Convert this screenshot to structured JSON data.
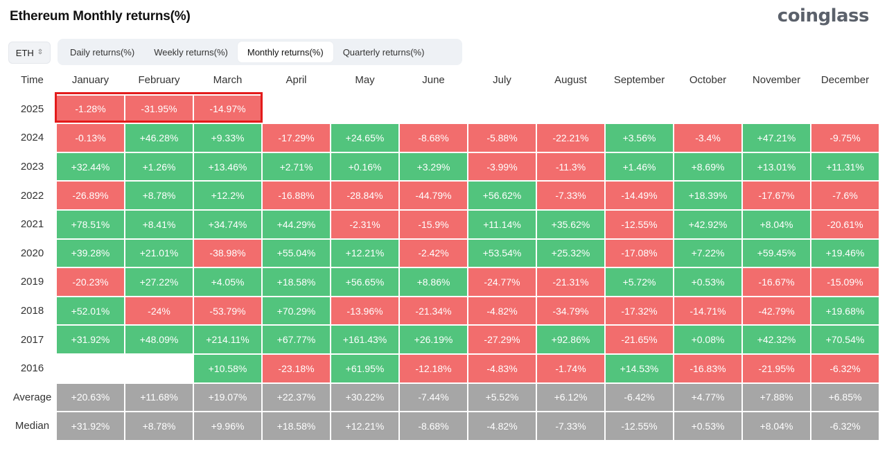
{
  "page": {
    "title": "Ethereum Monthly returns(%)",
    "brand": "coinglass"
  },
  "colors": {
    "positive": "#52c47d",
    "negative": "#f26d6d",
    "summary": "#a6a6a6",
    "highlight": "#e31b1b"
  },
  "selector": {
    "value": "ETH",
    "icon": "chevron-updown-icon"
  },
  "tabs": [
    {
      "label": "Daily returns(%)",
      "active": false
    },
    {
      "label": "Weekly returns(%)",
      "active": false
    },
    {
      "label": "Monthly returns(%)",
      "active": true
    },
    {
      "label": "Quarterly returns(%)",
      "active": false
    }
  ],
  "table": {
    "time_header": "Time",
    "months": [
      "January",
      "February",
      "March",
      "April",
      "May",
      "June",
      "July",
      "August",
      "September",
      "October",
      "November",
      "December"
    ],
    "rows": [
      {
        "label": "2025",
        "values": [
          "-1.28%",
          "-31.95%",
          "-14.97%",
          "",
          "",
          "",
          "",
          "",
          "",
          "",
          "",
          ""
        ]
      },
      {
        "label": "2024",
        "values": [
          "-0.13%",
          "+46.28%",
          "+9.33%",
          "-17.29%",
          "+24.65%",
          "-8.68%",
          "-5.88%",
          "-22.21%",
          "+3.56%",
          "-3.4%",
          "+47.21%",
          "-9.75%"
        ]
      },
      {
        "label": "2023",
        "values": [
          "+32.44%",
          "+1.26%",
          "+13.46%",
          "+2.71%",
          "+0.16%",
          "+3.29%",
          "-3.99%",
          "-11.3%",
          "+1.46%",
          "+8.69%",
          "+13.01%",
          "+11.31%"
        ]
      },
      {
        "label": "2022",
        "values": [
          "-26.89%",
          "+8.78%",
          "+12.2%",
          "-16.88%",
          "-28.84%",
          "-44.79%",
          "+56.62%",
          "-7.33%",
          "-14.49%",
          "+18.39%",
          "-17.67%",
          "-7.6%"
        ]
      },
      {
        "label": "2021",
        "values": [
          "+78.51%",
          "+8.41%",
          "+34.74%",
          "+44.29%",
          "-2.31%",
          "-15.9%",
          "+11.14%",
          "+35.62%",
          "-12.55%",
          "+42.92%",
          "+8.04%",
          "-20.61%"
        ]
      },
      {
        "label": "2020",
        "values": [
          "+39.28%",
          "+21.01%",
          "-38.98%",
          "+55.04%",
          "+12.21%",
          "-2.42%",
          "+53.54%",
          "+25.32%",
          "-17.08%",
          "+7.22%",
          "+59.45%",
          "+19.46%"
        ]
      },
      {
        "label": "2019",
        "values": [
          "-20.23%",
          "+27.22%",
          "+4.05%",
          "+18.58%",
          "+56.65%",
          "+8.86%",
          "-24.77%",
          "-21.31%",
          "+5.72%",
          "+0.53%",
          "-16.67%",
          "-15.09%"
        ]
      },
      {
        "label": "2018",
        "values": [
          "+52.01%",
          "-24%",
          "-53.79%",
          "+70.29%",
          "-13.96%",
          "-21.34%",
          "-4.82%",
          "-34.79%",
          "-17.32%",
          "-14.71%",
          "-42.79%",
          "+19.68%"
        ]
      },
      {
        "label": "2017",
        "values": [
          "+31.92%",
          "+48.09%",
          "+214.11%",
          "+67.77%",
          "+161.43%",
          "+26.19%",
          "-27.29%",
          "+92.86%",
          "-21.65%",
          "+0.08%",
          "+42.32%",
          "+70.54%"
        ]
      },
      {
        "label": "2016",
        "values": [
          "",
          "",
          "+10.58%",
          "-23.18%",
          "+61.95%",
          "-12.18%",
          "-4.83%",
          "-1.74%",
          "+14.53%",
          "-16.83%",
          "-21.95%",
          "-6.32%"
        ]
      }
    ],
    "summary_rows": [
      {
        "label": "Average",
        "values": [
          "+20.63%",
          "+11.68%",
          "+19.07%",
          "+22.37%",
          "+30.22%",
          "-7.44%",
          "+5.52%",
          "+6.12%",
          "-6.42%",
          "+4.77%",
          "+7.88%",
          "+6.85%"
        ]
      },
      {
        "label": "Median",
        "values": [
          "+31.92%",
          "+8.78%",
          "+9.96%",
          "+18.58%",
          "+12.21%",
          "-8.68%",
          "-4.82%",
          "-7.33%",
          "-12.55%",
          "+0.53%",
          "+8.04%",
          "-6.32%"
        ]
      }
    ]
  }
}
